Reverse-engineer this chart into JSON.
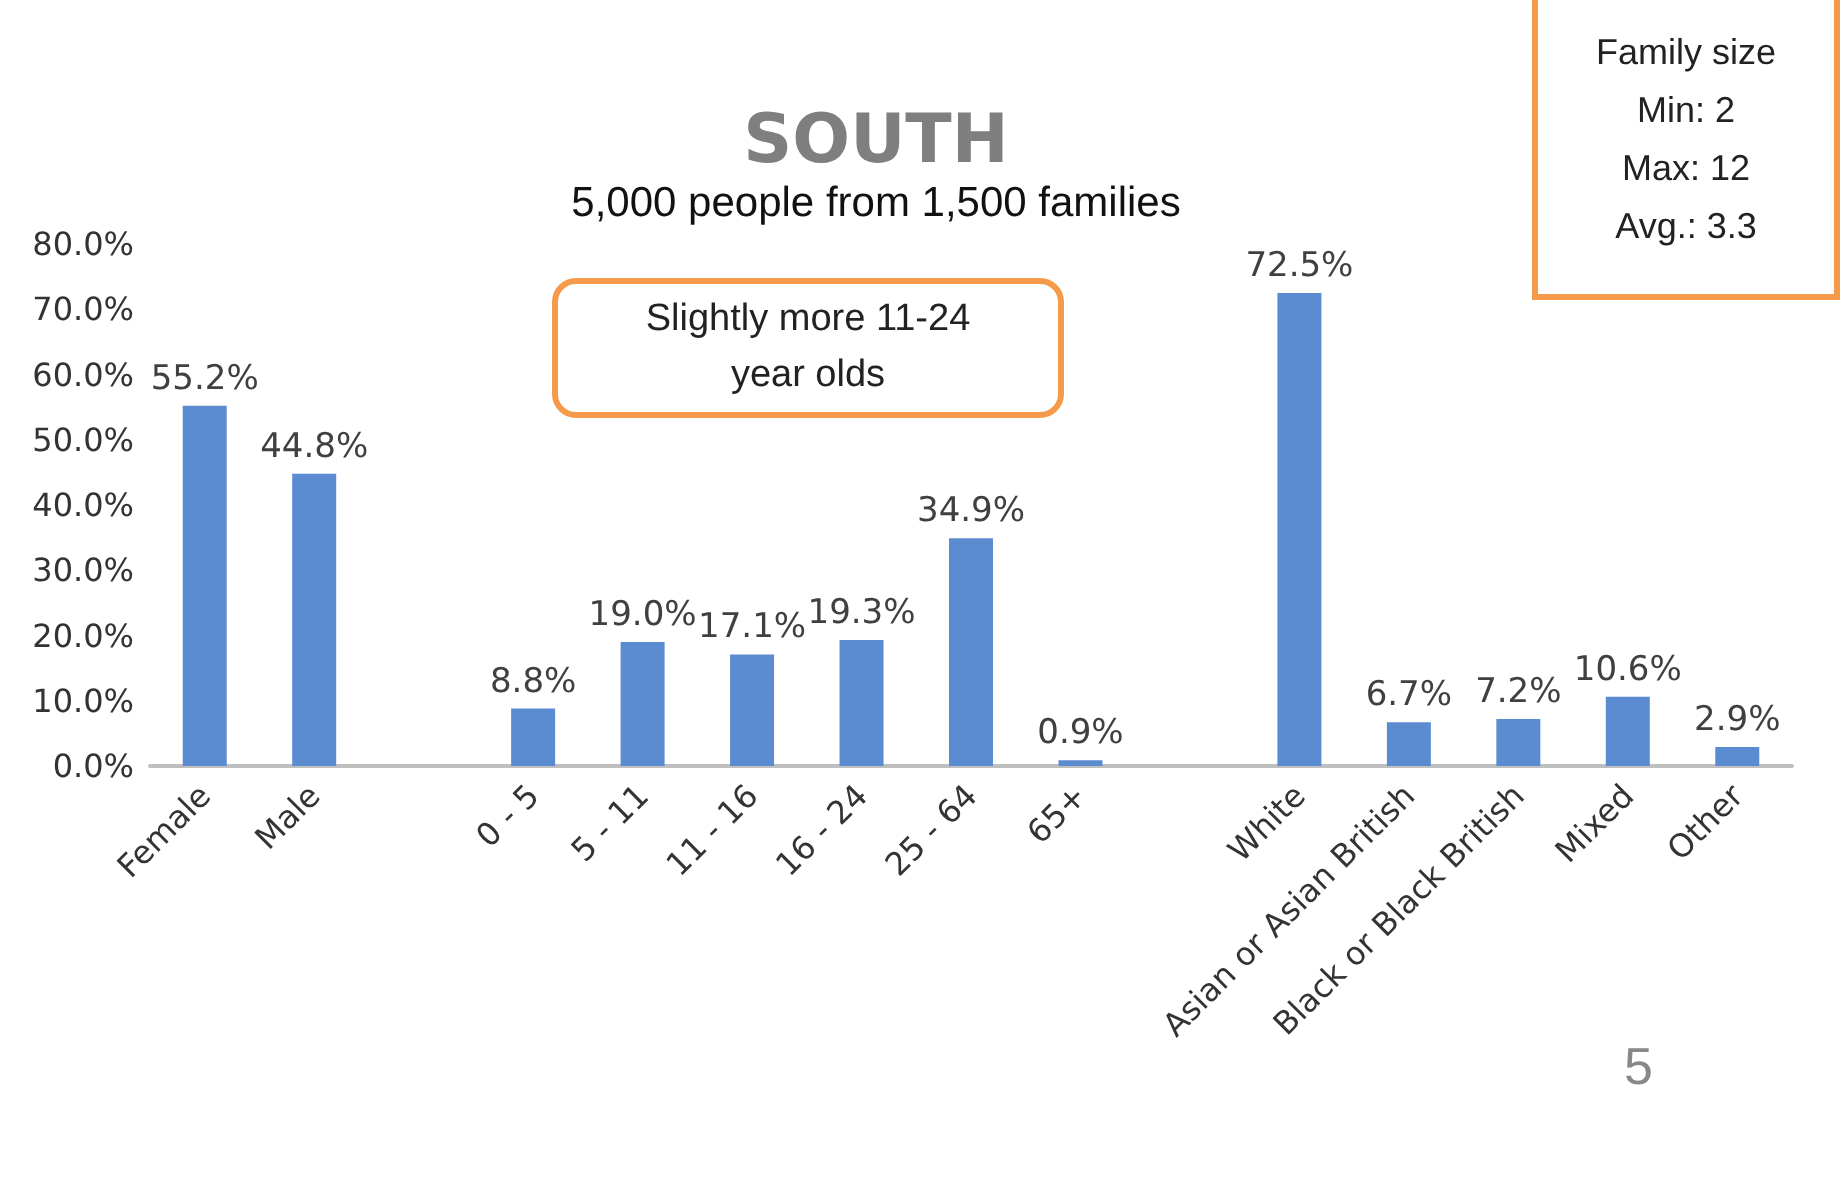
{
  "chart_data": {
    "type": "bar",
    "title": "SOUTH",
    "subtitle": "5,000 people from 1,500 families",
    "categories": [
      "Female",
      "Male",
      null,
      "0 - 5",
      "5 - 11",
      "11 - 16",
      "16 - 24",
      "25 - 64",
      "65+",
      null,
      "White",
      "Asian or Asian British",
      "Black or Black British",
      "Mixed",
      "Other"
    ],
    "values": [
      55.2,
      44.8,
      null,
      8.8,
      19.0,
      17.1,
      19.3,
      34.9,
      0.9,
      null,
      72.5,
      6.7,
      7.2,
      10.6,
      2.9
    ],
    "value_labels": [
      "55.2%",
      "44.8%",
      null,
      "8.8%",
      "19.0%",
      "17.1%",
      "19.3%",
      "34.9%",
      "0.9%",
      null,
      "72.5%",
      "6.7%",
      "7.2%",
      "10.6%",
      "2.9%"
    ],
    "color": "#5b8bd0",
    "ylim": [
      0,
      80
    ],
    "yticks": [
      {
        "value": 0,
        "label": "0.0%"
      },
      {
        "value": 10,
        "label": "10.0%"
      },
      {
        "value": 20,
        "label": "20.0%"
      },
      {
        "value": 30,
        "label": "30.0%"
      },
      {
        "value": 40,
        "label": "40.0%"
      },
      {
        "value": 50,
        "label": "50.0%"
      },
      {
        "value": 60,
        "label": "60.0%"
      },
      {
        "value": 70,
        "label": "70.0%"
      },
      {
        "value": 80,
        "label": "80.0%"
      }
    ],
    "grid": false,
    "annotations": [
      "Slightly more 11-24 year olds",
      "Family size\nMin: 2\nMax: 12\nAvg.: 3.3",
      "5"
    ]
  }
}
